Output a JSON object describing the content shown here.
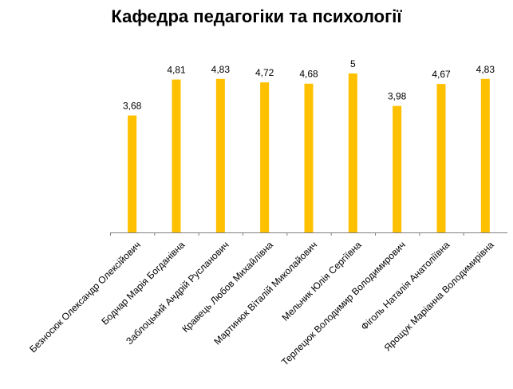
{
  "chart_data": {
    "type": "bar",
    "title": "Кафедра педагогіки та психології",
    "categories": [
      "Безносюк Олександр Олексійович",
      "Боднар Марія Богданівна",
      "Заблоцький Андрій Русланович",
      "Кравець Любов Михайлівна",
      "Мартинюк Віталій Миколайович",
      "Мельник Юлія Сергіївна",
      "Терлецюк Володимир Володимирович",
      "Фіголь Наталія Анатоліївна",
      "Ярощук Маріанна Володимирівна"
    ],
    "values": [
      3.68,
      4.81,
      4.83,
      4.72,
      4.68,
      5,
      3.98,
      4.67,
      4.83
    ],
    "data_labels": [
      "3,68",
      "4,81",
      "4,83",
      "4,72",
      "4,68",
      "5",
      "3,98",
      "4,67",
      "4,83"
    ],
    "ylim": [
      0,
      5
    ],
    "grid": false,
    "legend": "none",
    "bar_color": "#FFC000"
  }
}
